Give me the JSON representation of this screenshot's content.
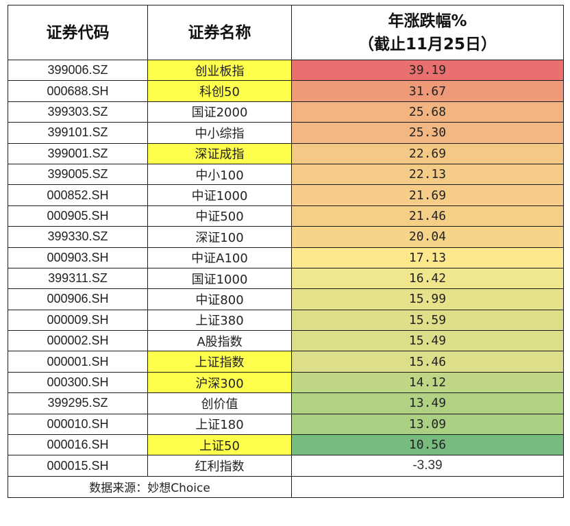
{
  "table": {
    "headers": {
      "code": "证券代码",
      "name": "证券名称",
      "change_line1": "年涨跌幅%",
      "change_line2": "（截止11月25日）"
    },
    "rows": [
      {
        "code": "399006.SZ",
        "name": "创业板指",
        "value": "39.19",
        "highlight": true,
        "color": "#e8706e"
      },
      {
        "code": "000688.SH",
        "name": "科创50",
        "value": "31.67",
        "highlight": true,
        "color": "#ee9a78"
      },
      {
        "code": "399303.SZ",
        "name": "国证2000",
        "value": "25.68",
        "highlight": false,
        "color": "#f2b581"
      },
      {
        "code": "399101.SZ",
        "name": "中小综指",
        "value": "25.30",
        "highlight": false,
        "color": "#f2b782"
      },
      {
        "code": "399001.SZ",
        "name": "深证成指",
        "value": "22.69",
        "highlight": true,
        "color": "#f4c986"
      },
      {
        "code": "399005.SZ",
        "name": "中小100",
        "value": "22.13",
        "highlight": false,
        "color": "#f4cb87"
      },
      {
        "code": "000852.SH",
        "name": "中证1000",
        "value": "21.69",
        "highlight": false,
        "color": "#f5cd88"
      },
      {
        "code": "000905.SH",
        "name": "中证500",
        "value": "21.46",
        "highlight": false,
        "color": "#f5ce88"
      },
      {
        "code": "399330.SZ",
        "name": "深证100",
        "value": "20.04",
        "highlight": false,
        "color": "#f6d58a"
      },
      {
        "code": "000903.SH",
        "name": "中证A100",
        "value": "17.13",
        "highlight": false,
        "color": "#fee88d"
      },
      {
        "code": "399311.SZ",
        "name": "国证1000",
        "value": "16.42",
        "highlight": false,
        "color": "#f0e68d"
      },
      {
        "code": "000906.SH",
        "name": "中证800",
        "value": "15.99",
        "highlight": false,
        "color": "#e6e28b"
      },
      {
        "code": "000009.SH",
        "name": "上证380",
        "value": "15.59",
        "highlight": false,
        "color": "#dfdf89"
      },
      {
        "code": "000002.SH",
        "name": "A股指数",
        "value": "15.49",
        "highlight": false,
        "color": "#dcdf89"
      },
      {
        "code": "000001.SH",
        "name": "上证指数",
        "value": "15.46",
        "highlight": true,
        "color": "#dcde89"
      },
      {
        "code": "000300.SH",
        "name": "沪深300",
        "value": "14.12",
        "highlight": true,
        "color": "#bfd686"
      },
      {
        "code": "399295.SZ",
        "name": "创价值",
        "value": "13.49",
        "highlight": false,
        "color": "#b1d285"
      },
      {
        "code": "000010.SH",
        "name": "上证180",
        "value": "13.09",
        "highlight": false,
        "color": "#a9d083"
      },
      {
        "code": "000016.SH",
        "name": "上证50",
        "value": "10.56",
        "highlight": true,
        "color": "#77bb7f"
      },
      {
        "code": "000015.SH",
        "name": "红利指数",
        "value": "-3.39",
        "highlight": false,
        "color": "#ffffff"
      }
    ],
    "footer": {
      "source": "数据来源：妙想Choice"
    }
  },
  "colors": {
    "highlight_yellow": "#ffff4d",
    "border": "#1a1a1a",
    "scale_high": "#e8706e",
    "scale_mid": "#fee88d",
    "scale_low": "#77bb7f"
  }
}
